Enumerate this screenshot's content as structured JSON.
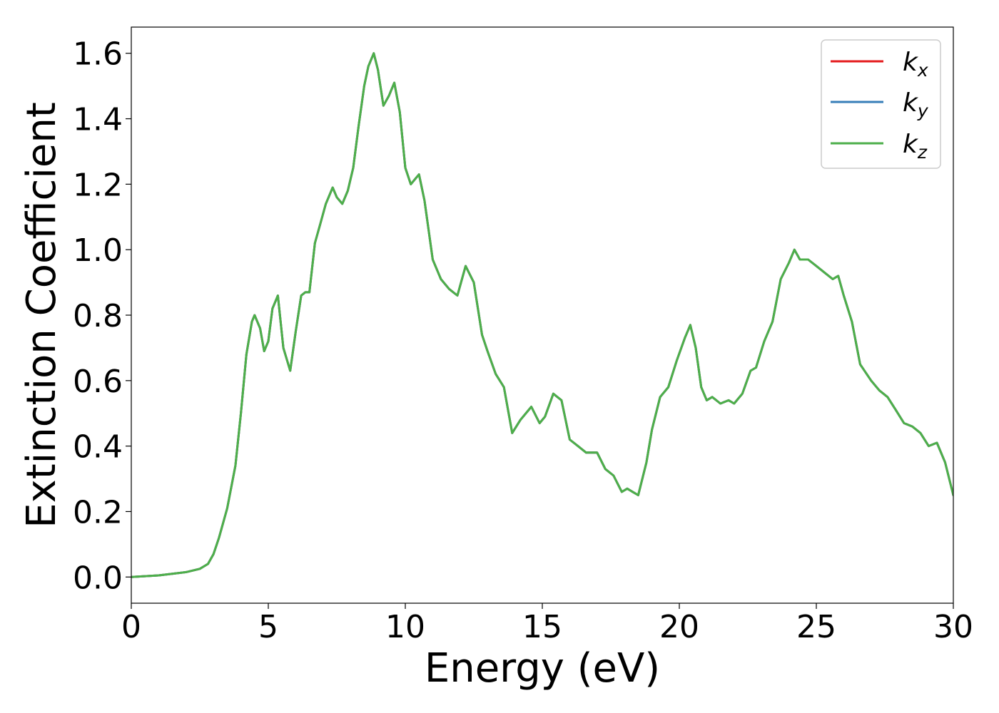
{
  "chart_data": {
    "type": "line",
    "xlabel": "Energy (eV)",
    "ylabel": "Extinction Coefficient",
    "xlim": [
      0,
      30
    ],
    "ylim": [
      -0.08,
      1.68
    ],
    "grid": false,
    "legend_position": "top-right",
    "x_ticks": [
      0,
      5,
      10,
      15,
      20,
      25,
      30
    ],
    "x_tick_labels": [
      "0",
      "5",
      "10",
      "15",
      "20",
      "25",
      "30"
    ],
    "y_ticks": [
      0.0,
      0.2,
      0.4,
      0.6,
      0.8,
      1.0,
      1.2,
      1.4,
      1.6
    ],
    "y_tick_labels": [
      "0.0",
      "0.2",
      "0.4",
      "0.6",
      "0.8",
      "1.0",
      "1.2",
      "1.4",
      "1.6"
    ],
    "series": [
      {
        "name": "k_x",
        "label_base": "k",
        "label_sub": "x",
        "color": "#e41a1c",
        "x": [
          0,
          1,
          2,
          2.5,
          2.8,
          3.0,
          3.2,
          3.5,
          3.8,
          4.0,
          4.2,
          4.4,
          4.5,
          4.7,
          4.85,
          5.0,
          5.15,
          5.35,
          5.55,
          5.8,
          6.0,
          6.2,
          6.35,
          6.5,
          6.7,
          6.9,
          7.1,
          7.35,
          7.5,
          7.7,
          7.9,
          8.1,
          8.3,
          8.5,
          8.65,
          8.85,
          9.0,
          9.2,
          9.4,
          9.6,
          9.8,
          10.0,
          10.2,
          10.5,
          10.7,
          11.0,
          11.3,
          11.6,
          11.9,
          12.2,
          12.5,
          12.8,
          13.0,
          13.3,
          13.6,
          13.9,
          14.2,
          14.6,
          14.9,
          15.1,
          15.4,
          15.7,
          16.0,
          16.3,
          16.6,
          17.0,
          17.3,
          17.6,
          17.9,
          18.1,
          18.3,
          18.5,
          18.8,
          19.0,
          19.3,
          19.6,
          19.9,
          20.2,
          20.4,
          20.6,
          20.8,
          21.0,
          21.2,
          21.5,
          21.8,
          22.0,
          22.3,
          22.6,
          22.8,
          23.1,
          23.4,
          23.7,
          24.0,
          24.2,
          24.4,
          24.7,
          25.0,
          25.3,
          25.6,
          25.8,
          26.0,
          26.3,
          26.6,
          27.0,
          27.3,
          27.6,
          27.9,
          28.2,
          28.5,
          28.8,
          29.1,
          29.4,
          29.7,
          30.0
        ],
        "values": [
          0.0,
          0.005,
          0.015,
          0.025,
          0.04,
          0.07,
          0.12,
          0.21,
          0.34,
          0.5,
          0.68,
          0.78,
          0.8,
          0.76,
          0.69,
          0.72,
          0.82,
          0.86,
          0.7,
          0.63,
          0.75,
          0.86,
          0.87,
          0.87,
          1.02,
          1.08,
          1.14,
          1.19,
          1.16,
          1.14,
          1.18,
          1.25,
          1.38,
          1.5,
          1.56,
          1.6,
          1.55,
          1.44,
          1.47,
          1.51,
          1.42,
          1.25,
          1.2,
          1.23,
          1.15,
          0.97,
          0.91,
          0.88,
          0.86,
          0.95,
          0.9,
          0.74,
          0.69,
          0.62,
          0.58,
          0.44,
          0.48,
          0.52,
          0.47,
          0.49,
          0.56,
          0.54,
          0.42,
          0.4,
          0.38,
          0.38,
          0.33,
          0.31,
          0.26,
          0.27,
          0.26,
          0.25,
          0.35,
          0.45,
          0.55,
          0.58,
          0.66,
          0.73,
          0.77,
          0.7,
          0.58,
          0.54,
          0.55,
          0.53,
          0.54,
          0.53,
          0.56,
          0.63,
          0.64,
          0.72,
          0.78,
          0.91,
          0.96,
          1.0,
          0.97,
          0.97,
          0.95,
          0.93,
          0.91,
          0.92,
          0.86,
          0.78,
          0.65,
          0.6,
          0.57,
          0.55,
          0.51,
          0.47,
          0.46,
          0.44,
          0.4,
          0.41,
          0.35,
          0.25
        ]
      },
      {
        "name": "k_y",
        "label_base": "k",
        "label_sub": "y",
        "color": "#377eb8",
        "x": [
          0,
          1,
          2,
          2.5,
          2.8,
          3.0,
          3.2,
          3.5,
          3.8,
          4.0,
          4.2,
          4.4,
          4.5,
          4.7,
          4.85,
          5.0,
          5.15,
          5.35,
          5.55,
          5.8,
          6.0,
          6.2,
          6.35,
          6.5,
          6.7,
          6.9,
          7.1,
          7.35,
          7.5,
          7.7,
          7.9,
          8.1,
          8.3,
          8.5,
          8.65,
          8.85,
          9.0,
          9.2,
          9.4,
          9.6,
          9.8,
          10.0,
          10.2,
          10.5,
          10.7,
          11.0,
          11.3,
          11.6,
          11.9,
          12.2,
          12.5,
          12.8,
          13.0,
          13.3,
          13.6,
          13.9,
          14.2,
          14.6,
          14.9,
          15.1,
          15.4,
          15.7,
          16.0,
          16.3,
          16.6,
          17.0,
          17.3,
          17.6,
          17.9,
          18.1,
          18.3,
          18.5,
          18.8,
          19.0,
          19.3,
          19.6,
          19.9,
          20.2,
          20.4,
          20.6,
          20.8,
          21.0,
          21.2,
          21.5,
          21.8,
          22.0,
          22.3,
          22.6,
          22.8,
          23.1,
          23.4,
          23.7,
          24.0,
          24.2,
          24.4,
          24.7,
          25.0,
          25.3,
          25.6,
          25.8,
          26.0,
          26.3,
          26.6,
          27.0,
          27.3,
          27.6,
          27.9,
          28.2,
          28.5,
          28.8,
          29.1,
          29.4,
          29.7,
          30.0
        ],
        "values": [
          0.0,
          0.005,
          0.015,
          0.025,
          0.04,
          0.07,
          0.12,
          0.21,
          0.34,
          0.5,
          0.68,
          0.78,
          0.8,
          0.76,
          0.69,
          0.72,
          0.82,
          0.86,
          0.7,
          0.63,
          0.75,
          0.86,
          0.87,
          0.87,
          1.02,
          1.08,
          1.14,
          1.19,
          1.16,
          1.14,
          1.18,
          1.25,
          1.38,
          1.5,
          1.56,
          1.6,
          1.55,
          1.44,
          1.47,
          1.51,
          1.42,
          1.25,
          1.2,
          1.23,
          1.15,
          0.97,
          0.91,
          0.88,
          0.86,
          0.95,
          0.9,
          0.74,
          0.69,
          0.62,
          0.58,
          0.44,
          0.48,
          0.52,
          0.47,
          0.49,
          0.56,
          0.54,
          0.42,
          0.4,
          0.38,
          0.38,
          0.33,
          0.31,
          0.26,
          0.27,
          0.26,
          0.25,
          0.35,
          0.45,
          0.55,
          0.58,
          0.66,
          0.73,
          0.77,
          0.7,
          0.58,
          0.54,
          0.55,
          0.53,
          0.54,
          0.53,
          0.56,
          0.63,
          0.64,
          0.72,
          0.78,
          0.91,
          0.96,
          1.0,
          0.97,
          0.97,
          0.95,
          0.93,
          0.91,
          0.92,
          0.86,
          0.78,
          0.65,
          0.6,
          0.57,
          0.55,
          0.51,
          0.47,
          0.46,
          0.44,
          0.4,
          0.41,
          0.35,
          0.25
        ]
      },
      {
        "name": "k_z",
        "label_base": "k",
        "label_sub": "z",
        "color": "#4daf4a",
        "x": [
          0,
          1,
          2,
          2.5,
          2.8,
          3.0,
          3.2,
          3.5,
          3.8,
          4.0,
          4.2,
          4.4,
          4.5,
          4.7,
          4.85,
          5.0,
          5.15,
          5.35,
          5.55,
          5.8,
          6.0,
          6.2,
          6.35,
          6.5,
          6.7,
          6.9,
          7.1,
          7.35,
          7.5,
          7.7,
          7.9,
          8.1,
          8.3,
          8.5,
          8.65,
          8.85,
          9.0,
          9.2,
          9.4,
          9.6,
          9.8,
          10.0,
          10.2,
          10.5,
          10.7,
          11.0,
          11.3,
          11.6,
          11.9,
          12.2,
          12.5,
          12.8,
          13.0,
          13.3,
          13.6,
          13.9,
          14.2,
          14.6,
          14.9,
          15.1,
          15.4,
          15.7,
          16.0,
          16.3,
          16.6,
          17.0,
          17.3,
          17.6,
          17.9,
          18.1,
          18.3,
          18.5,
          18.8,
          19.0,
          19.3,
          19.6,
          19.9,
          20.2,
          20.4,
          20.6,
          20.8,
          21.0,
          21.2,
          21.5,
          21.8,
          22.0,
          22.3,
          22.6,
          22.8,
          23.1,
          23.4,
          23.7,
          24.0,
          24.2,
          24.4,
          24.7,
          25.0,
          25.3,
          25.6,
          25.8,
          26.0,
          26.3,
          26.6,
          27.0,
          27.3,
          27.6,
          27.9,
          28.2,
          28.5,
          28.8,
          29.1,
          29.4,
          29.7,
          30.0
        ],
        "values": [
          0.0,
          0.005,
          0.015,
          0.025,
          0.04,
          0.07,
          0.12,
          0.21,
          0.34,
          0.5,
          0.68,
          0.78,
          0.8,
          0.76,
          0.69,
          0.72,
          0.82,
          0.86,
          0.7,
          0.63,
          0.75,
          0.86,
          0.87,
          0.87,
          1.02,
          1.08,
          1.14,
          1.19,
          1.16,
          1.14,
          1.18,
          1.25,
          1.38,
          1.5,
          1.56,
          1.6,
          1.55,
          1.44,
          1.47,
          1.51,
          1.42,
          1.25,
          1.2,
          1.23,
          1.15,
          0.97,
          0.91,
          0.88,
          0.86,
          0.95,
          0.9,
          0.74,
          0.69,
          0.62,
          0.58,
          0.44,
          0.48,
          0.52,
          0.47,
          0.49,
          0.56,
          0.54,
          0.42,
          0.4,
          0.38,
          0.38,
          0.33,
          0.31,
          0.26,
          0.27,
          0.26,
          0.25,
          0.35,
          0.45,
          0.55,
          0.58,
          0.66,
          0.73,
          0.77,
          0.7,
          0.58,
          0.54,
          0.55,
          0.53,
          0.54,
          0.53,
          0.56,
          0.63,
          0.64,
          0.72,
          0.78,
          0.91,
          0.96,
          1.0,
          0.97,
          0.97,
          0.95,
          0.93,
          0.91,
          0.92,
          0.86,
          0.78,
          0.65,
          0.6,
          0.57,
          0.55,
          0.51,
          0.47,
          0.46,
          0.44,
          0.4,
          0.41,
          0.35,
          0.25
        ]
      }
    ]
  }
}
